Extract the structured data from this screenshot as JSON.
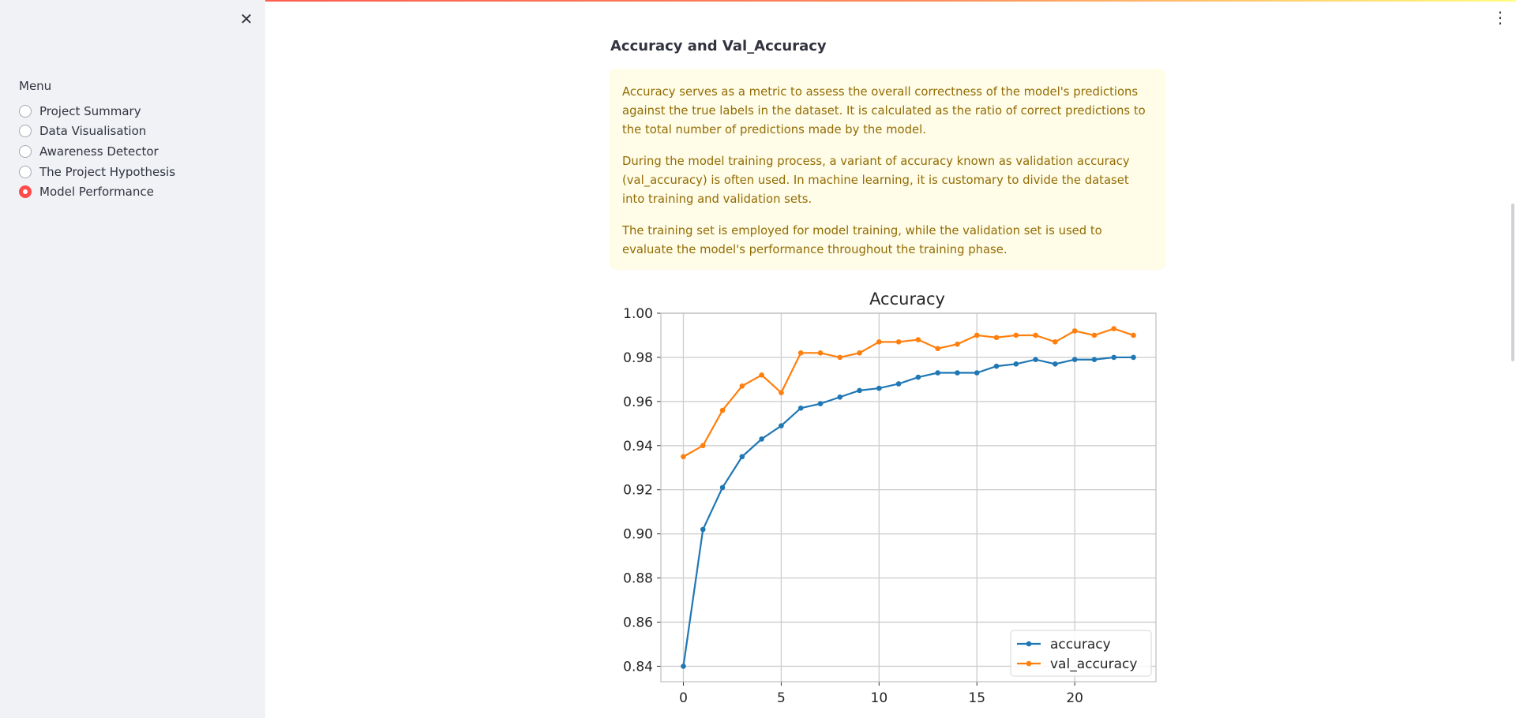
{
  "sidebar": {
    "close_icon": "close-icon",
    "menu_label": "Menu",
    "items": [
      {
        "label": "Project Summary",
        "selected": false
      },
      {
        "label": "Data Visualisation",
        "selected": false
      },
      {
        "label": "Awareness Detector",
        "selected": false
      },
      {
        "label": "The Project Hypothesis",
        "selected": false
      },
      {
        "label": "Model Performance",
        "selected": true
      }
    ],
    "accent_color": "#ff4b4b"
  },
  "header": {
    "menu_icon": "kebab-menu-icon"
  },
  "main": {
    "title": "Accuracy and Val_Accuracy",
    "info_paragraphs": [
      "Accuracy serves as a metric to assess the overall correctness of the model's predictions against the true labels in the dataset. It is calculated as the ratio of correct predictions to the total number of predictions made by the model.",
      "During the model training process, a variant of accuracy known as validation accuracy (val_accuracy) is often used. In machine learning, it is customary to divide the dataset into training and validation sets.",
      "The training set is employed for model training, while the validation set is used to evaluate the model's performance throughout the training phase."
    ],
    "info_text_color": "#926c05",
    "info_bg_color": "#fffce7"
  },
  "chart_data": {
    "type": "line",
    "title": "Accuracy",
    "xlabel": "",
    "ylabel": "",
    "x": [
      0,
      1,
      2,
      3,
      4,
      5,
      6,
      7,
      8,
      9,
      10,
      11,
      12,
      13,
      14,
      15,
      16,
      17,
      18,
      19,
      20,
      21,
      22,
      23
    ],
    "xticks": [
      0,
      5,
      10,
      15,
      20
    ],
    "yticks": [
      0.84,
      0.86,
      0.88,
      0.9,
      0.92,
      0.94,
      0.96,
      0.98,
      1.0
    ],
    "ylim": [
      0.833,
      1.0
    ],
    "xlim": [
      -1.15,
      24.15
    ],
    "grid": true,
    "legend_position": "lower right",
    "series": [
      {
        "name": "accuracy",
        "color": "#1f77b4",
        "values": [
          0.84,
          0.902,
          0.921,
          0.935,
          0.943,
          0.949,
          0.957,
          0.959,
          0.962,
          0.965,
          0.966,
          0.968,
          0.971,
          0.973,
          0.973,
          0.973,
          0.976,
          0.977,
          0.979,
          0.977,
          0.979,
          0.979,
          0.98,
          0.98
        ]
      },
      {
        "name": "val_accuracy",
        "color": "#ff7f0e",
        "values": [
          0.935,
          0.94,
          0.956,
          0.967,
          0.972,
          0.964,
          0.982,
          0.982,
          0.98,
          0.982,
          0.987,
          0.987,
          0.988,
          0.984,
          0.986,
          0.99,
          0.989,
          0.99,
          0.99,
          0.987,
          0.992,
          0.99,
          0.993,
          0.99
        ]
      }
    ]
  }
}
